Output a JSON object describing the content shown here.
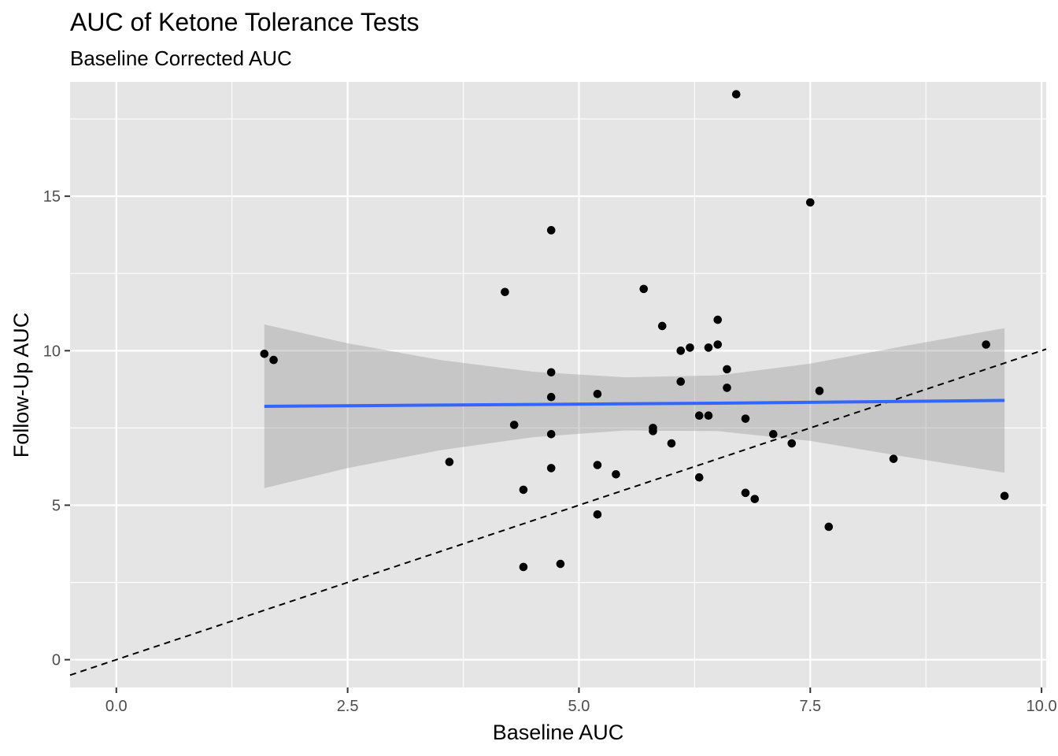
{
  "chart_data": {
    "type": "scatter",
    "title": "AUC of Ketone Tolerance Tests",
    "subtitle": "Baseline Corrected AUC",
    "xlabel": "Baseline AUC",
    "ylabel": "Follow-Up AUC",
    "xlim": [
      -0.5,
      10.05
    ],
    "ylim": [
      -0.9,
      18.7
    ],
    "x_ticks": [
      0,
      2.5,
      5,
      7.5,
      10
    ],
    "x_tick_labels": [
      "0.0",
      "2.5",
      "5.0",
      "7.5",
      "10.0"
    ],
    "y_ticks": [
      0,
      5,
      10,
      15
    ],
    "y_tick_labels": [
      "0",
      "5",
      "10",
      "15"
    ],
    "grid": true,
    "points": [
      {
        "x": 1.6,
        "y": 9.9
      },
      {
        "x": 1.7,
        "y": 9.7
      },
      {
        "x": 3.6,
        "y": 6.4
      },
      {
        "x": 4.2,
        "y": 11.9
      },
      {
        "x": 4.3,
        "y": 7.6
      },
      {
        "x": 4.4,
        "y": 5.5
      },
      {
        "x": 4.4,
        "y": 3.0
      },
      {
        "x": 4.7,
        "y": 13.9
      },
      {
        "x": 4.7,
        "y": 9.3
      },
      {
        "x": 4.7,
        "y": 8.5
      },
      {
        "x": 4.7,
        "y": 7.3
      },
      {
        "x": 4.7,
        "y": 6.2
      },
      {
        "x": 4.8,
        "y": 3.1
      },
      {
        "x": 5.2,
        "y": 8.6
      },
      {
        "x": 5.2,
        "y": 6.3
      },
      {
        "x": 5.2,
        "y": 4.7
      },
      {
        "x": 5.4,
        "y": 6.0
      },
      {
        "x": 5.7,
        "y": 12.0
      },
      {
        "x": 5.8,
        "y": 7.5
      },
      {
        "x": 5.8,
        "y": 7.4
      },
      {
        "x": 5.9,
        "y": 10.8
      },
      {
        "x": 6.0,
        "y": 7.0
      },
      {
        "x": 6.1,
        "y": 10.0
      },
      {
        "x": 6.1,
        "y": 9.0
      },
      {
        "x": 6.2,
        "y": 10.1
      },
      {
        "x": 6.3,
        "y": 7.9
      },
      {
        "x": 6.3,
        "y": 5.9
      },
      {
        "x": 6.4,
        "y": 10.1
      },
      {
        "x": 6.4,
        "y": 7.9
      },
      {
        "x": 6.5,
        "y": 11.0
      },
      {
        "x": 6.5,
        "y": 10.2
      },
      {
        "x": 6.6,
        "y": 9.4
      },
      {
        "x": 6.6,
        "y": 8.8
      },
      {
        "x": 6.7,
        "y": 18.3
      },
      {
        "x": 6.8,
        "y": 7.8
      },
      {
        "x": 6.8,
        "y": 5.4
      },
      {
        "x": 6.9,
        "y": 5.2
      },
      {
        "x": 7.1,
        "y": 7.3
      },
      {
        "x": 7.3,
        "y": 7.0
      },
      {
        "x": 7.5,
        "y": 14.8
      },
      {
        "x": 7.6,
        "y": 8.7
      },
      {
        "x": 7.7,
        "y": 4.3
      },
      {
        "x": 8.4,
        "y": 6.5
      },
      {
        "x": 9.4,
        "y": 10.2
      },
      {
        "x": 9.6,
        "y": 5.3
      }
    ],
    "smooth": {
      "method": "lm",
      "color": "#3366FF",
      "fill": "#999999",
      "fit": [
        [
          1.6,
          8.2
        ],
        [
          2.5,
          8.22
        ],
        [
          3.5,
          8.24
        ],
        [
          4.5,
          8.26
        ],
        [
          5.5,
          8.28
        ],
        [
          6.5,
          8.3
        ],
        [
          7.5,
          8.33
        ],
        [
          8.5,
          8.36
        ],
        [
          9.6,
          8.39
        ]
      ],
      "lower": [
        [
          1.6,
          5.55
        ],
        [
          2.5,
          6.2
        ],
        [
          3.5,
          6.78
        ],
        [
          4.5,
          7.2
        ],
        [
          5.5,
          7.42
        ],
        [
          6.5,
          7.4
        ],
        [
          7.5,
          7.08
        ],
        [
          8.5,
          6.58
        ],
        [
          9.6,
          6.05
        ]
      ],
      "upper": [
        [
          1.6,
          10.85
        ],
        [
          2.5,
          10.24
        ],
        [
          3.5,
          9.7
        ],
        [
          4.5,
          9.32
        ],
        [
          5.5,
          9.14
        ],
        [
          6.5,
          9.2
        ],
        [
          7.5,
          9.58
        ],
        [
          8.5,
          10.14
        ],
        [
          9.6,
          10.73
        ]
      ]
    },
    "reference_line": {
      "type": "identity",
      "slope": 1,
      "intercept": 0,
      "linetype": "dashed",
      "color": "#000000"
    },
    "colors": {
      "panel_bg": "#E5E5E5",
      "grid": "#FFFFFF",
      "point": "#000000",
      "tick_text": "#4D4D4D"
    }
  }
}
